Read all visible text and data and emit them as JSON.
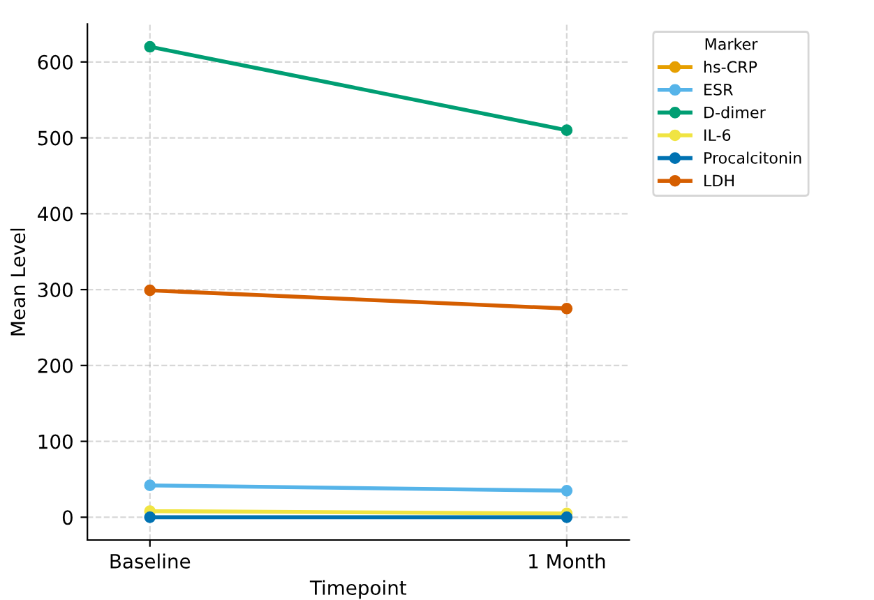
{
  "chart_data": {
    "type": "line",
    "categories": [
      "Baseline",
      "1 Month"
    ],
    "xlabel": "Timepoint",
    "ylabel": "Mean Level",
    "legend_title": "Marker",
    "legend": "top right",
    "grid": true,
    "marker": "circle",
    "line_style": "solid",
    "ylim": [
      -30,
      650
    ],
    "yticks": [
      0,
      100,
      200,
      300,
      400,
      500,
      600
    ],
    "series": [
      {
        "name": "hs-CRP",
        "color": "#e69f00",
        "values": [
          null,
          null
        ]
      },
      {
        "name": "ESR",
        "color": "#56b4e9",
        "values": [
          42,
          35
        ]
      },
      {
        "name": "D-dimer",
        "color": "#009e73",
        "values": [
          620,
          510
        ]
      },
      {
        "name": "IL-6",
        "color": "#f0e442",
        "values": [
          8,
          5
        ]
      },
      {
        "name": "Procalcitonin",
        "color": "#0072b2",
        "values": [
          0,
          0
        ]
      },
      {
        "name": "LDH",
        "color": "#d55e00",
        "values": [
          299,
          275
        ]
      }
    ]
  }
}
